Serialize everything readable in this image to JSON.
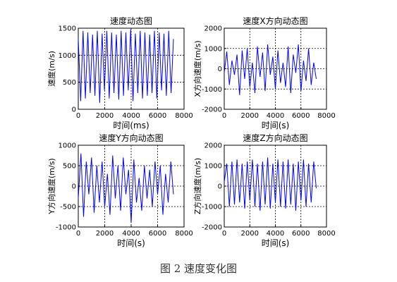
{
  "caption": "图 2  速度变化图",
  "chart_data": [
    {
      "type": "line",
      "title": "速度动态图",
      "xlabel": "时间(ms)",
      "ylabel": "速度(m/s)",
      "xlim": [
        0,
        8000
      ],
      "ylim": [
        0,
        1500
      ],
      "xticks": [
        0,
        2000,
        4000,
        6000,
        8000
      ],
      "yticks": [
        0,
        500,
        1000,
        1500
      ],
      "grid": true,
      "series": [
        {
          "color": "#0000ff",
          "x": [
            0,
            180,
            360,
            540,
            720,
            900,
            1080,
            1260,
            1440,
            1620,
            1800,
            1980,
            2160,
            2340,
            2520,
            2700,
            2880,
            3060,
            3240,
            3420,
            3600,
            3780,
            3960,
            4140,
            4320,
            4500,
            4680,
            4860,
            5040,
            5220,
            5400,
            5580,
            5760,
            5940,
            6120,
            6300,
            6480,
            6660,
            6840,
            7020,
            7200
          ],
          "values": [
            1300,
            150,
            1450,
            200,
            1420,
            300,
            1380,
            250,
            1450,
            120,
            1400,
            350,
            1450,
            200,
            1420,
            300,
            1380,
            180,
            1450,
            250,
            1420,
            350,
            1480,
            150,
            1400,
            300,
            1450,
            200,
            1420,
            250,
            1380,
            300,
            1450,
            200,
            1420,
            350,
            1400,
            250,
            1450,
            300,
            1300
          ]
        }
      ]
    },
    {
      "type": "line",
      "title": "速度X方向动态图",
      "xlabel": "时间(s)",
      "ylabel": "X方向速度(m/s)",
      "xlim": [
        0,
        8000
      ],
      "ylim": [
        -2000,
        2000
      ],
      "xticks": [
        0,
        2000,
        4000,
        6000,
        8000
      ],
      "yticks": [
        -2000,
        -1000,
        0,
        1000,
        2000
      ],
      "grid": true,
      "series": [
        {
          "color": "#0000ff",
          "x": [
            0,
            200,
            400,
            600,
            800,
            1000,
            1200,
            1400,
            1600,
            1800,
            2000,
            2200,
            2400,
            2600,
            2800,
            3000,
            3200,
            3400,
            3600,
            3800,
            4000,
            4200,
            4400,
            4600,
            4800,
            5000,
            5200,
            5400,
            5600,
            5800,
            6000,
            6200,
            6400,
            6600,
            6800,
            7000,
            7200
          ],
          "values": [
            -200,
            850,
            -800,
            400,
            -300,
            700,
            -1300,
            900,
            -500,
            1000,
            -900,
            300,
            -1200,
            1100,
            -400,
            800,
            -1100,
            1200,
            -300,
            600,
            -1000,
            900,
            -700,
            300,
            -900,
            1100,
            -1200,
            700,
            -200,
            1200,
            -1100,
            400,
            -600,
            1000,
            -800,
            300,
            -500
          ]
        }
      ]
    },
    {
      "type": "line",
      "title": "速度Y方向动态图",
      "xlabel": "时间(s)",
      "ylabel": "Y方向速度(m/s)",
      "xlim": [
        0,
        8000
      ],
      "ylim": [
        -1000,
        1000
      ],
      "xticks": [
        0,
        2000,
        4000,
        6000,
        8000
      ],
      "yticks": [
        -1000,
        -500,
        0,
        500,
        1000
      ],
      "grid": true,
      "series": [
        {
          "color": "#0000ff",
          "x": [
            0,
            200,
            400,
            600,
            800,
            1000,
            1200,
            1400,
            1600,
            1800,
            2000,
            2200,
            2400,
            2600,
            2800,
            3000,
            3200,
            3400,
            3600,
            3800,
            4000,
            4200,
            4400,
            4600,
            4800,
            5000,
            5200,
            5400,
            5600,
            5800,
            6000,
            6200,
            6400,
            6600,
            6800,
            7000,
            7200
          ],
          "values": [
            -300,
            800,
            -750,
            600,
            -200,
            700,
            -650,
            500,
            -400,
            600,
            -500,
            300,
            -700,
            750,
            -300,
            500,
            -600,
            700,
            -200,
            400,
            -900,
            650,
            -400,
            200,
            -600,
            500,
            -300,
            400,
            -500,
            600,
            -200,
            500,
            -700,
            300,
            -400,
            600,
            -200
          ]
        }
      ]
    },
    {
      "type": "line",
      "title": "速度Z方向动态图",
      "xlabel": "时间(s)",
      "ylabel": "Z方向速度(m/s)",
      "xlim": [
        0,
        8000
      ],
      "ylim": [
        -2000,
        2000
      ],
      "xticks": [
        0,
        2000,
        4000,
        6000,
        8000
      ],
      "yticks": [
        -2000,
        -1000,
        0,
        1000,
        2000
      ],
      "grid": true,
      "series": [
        {
          "color": "#0000ff",
          "x": [
            0,
            200,
            400,
            600,
            800,
            1000,
            1200,
            1400,
            1600,
            1800,
            2000,
            2200,
            2400,
            2600,
            2800,
            3000,
            3200,
            3400,
            3600,
            3800,
            4000,
            4200,
            4400,
            4600,
            4800,
            5000,
            5200,
            5400,
            5600,
            5800,
            6000,
            6200,
            6400,
            6600,
            6800,
            7000,
            7200
          ],
          "values": [
            200,
            1100,
            -1000,
            1200,
            -900,
            1300,
            -800,
            1100,
            -1100,
            1200,
            -700,
            1300,
            -1000,
            1100,
            -1200,
            1200,
            -900,
            1400,
            -1100,
            1100,
            -800,
            1300,
            -1000,
            1200,
            -1100,
            1300,
            -900,
            1100,
            -1200,
            1200,
            -700,
            1300,
            -1000,
            1100,
            -800,
            1200,
            -100
          ]
        }
      ]
    }
  ]
}
